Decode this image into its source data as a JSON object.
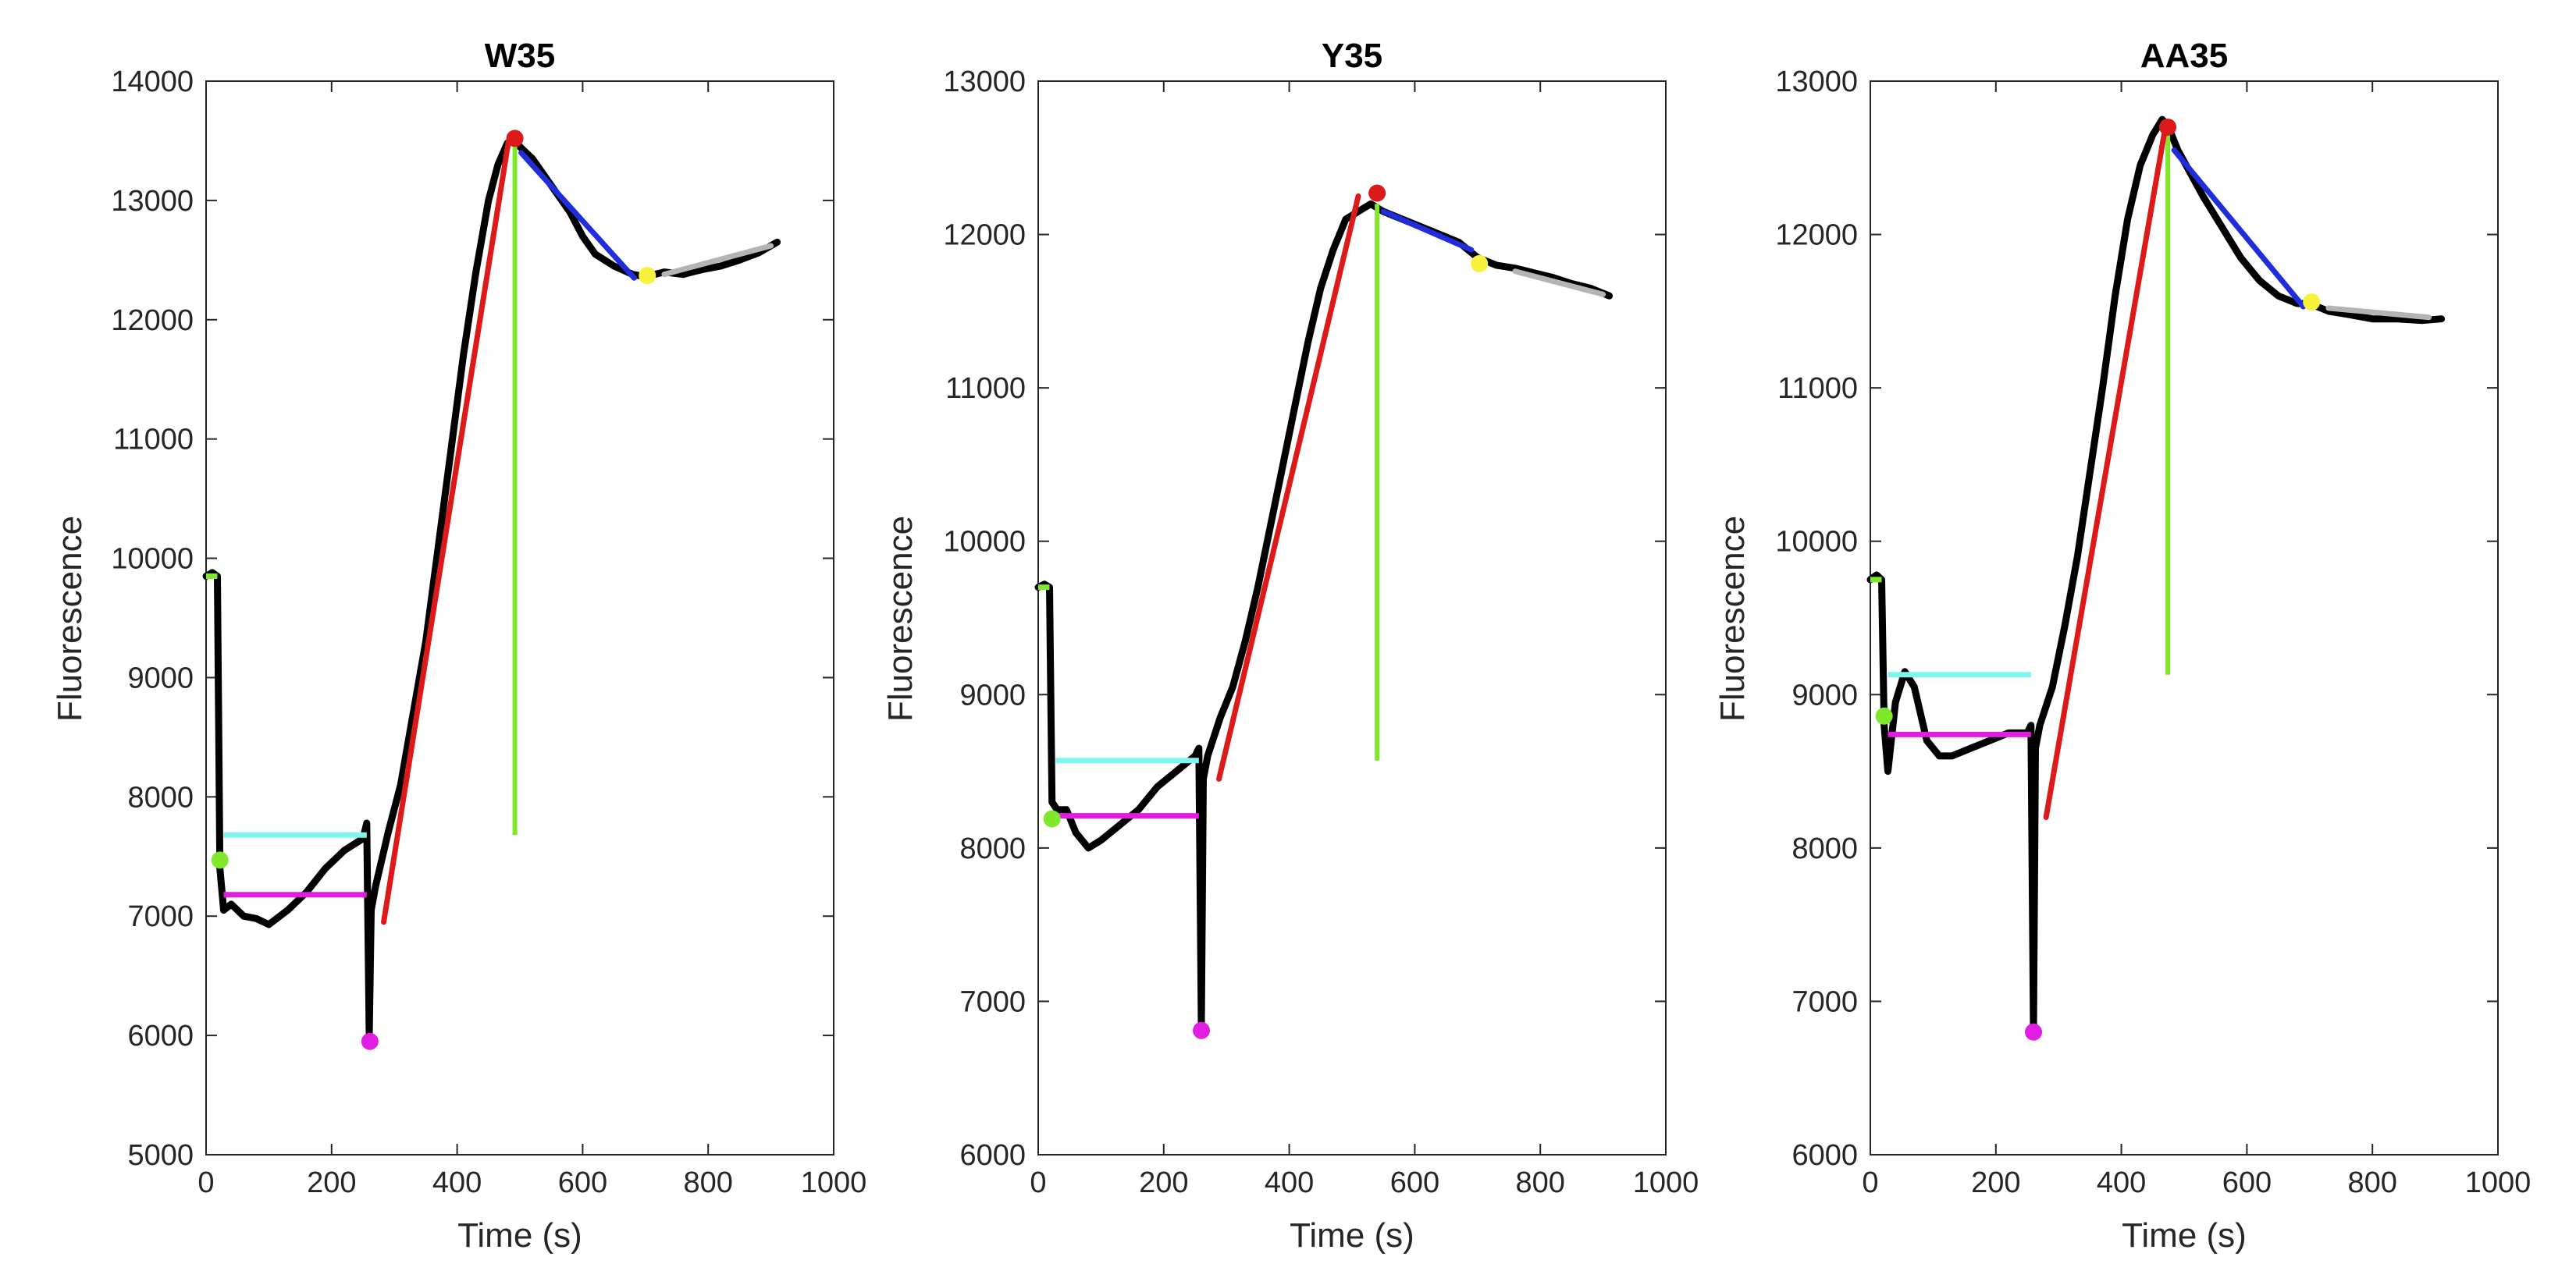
{
  "figure": {
    "colors": {
      "trace": "#000000",
      "baseline_marker": "#7fe82a",
      "cyan_line": "#7ff5f0",
      "magenta": "#e21de2",
      "red_fit": "#dd1a1a",
      "green_bar": "#7fe82a",
      "blue_fit": "#1f2ddd",
      "yellow_marker": "#f7f23c",
      "gray_fit": "#b4b4b4"
    }
  },
  "chart_data": [
    {
      "type": "line",
      "title": "W35",
      "xlabel": "Time (s)",
      "ylabel": "Fluorescence",
      "xlim": [
        0,
        1000
      ],
      "ylim": [
        5000,
        14000
      ],
      "xticks": [
        0,
        200,
        400,
        600,
        800,
        1000
      ],
      "yticks": [
        5000,
        6000,
        7000,
        8000,
        9000,
        10000,
        11000,
        12000,
        13000,
        14000
      ],
      "grid": false,
      "trace": [
        [
          0,
          9850
        ],
        [
          10,
          9880
        ],
        [
          18,
          9850
        ],
        [
          22,
          7400
        ],
        [
          28,
          7050
        ],
        [
          40,
          7100
        ],
        [
          60,
          7000
        ],
        [
          80,
          6980
        ],
        [
          100,
          6930
        ],
        [
          130,
          7050
        ],
        [
          160,
          7200
        ],
        [
          190,
          7400
        ],
        [
          220,
          7550
        ],
        [
          250,
          7650
        ],
        [
          256,
          7780
        ],
        [
          260,
          6000
        ],
        [
          263,
          7050
        ],
        [
          270,
          7250
        ],
        [
          290,
          7700
        ],
        [
          310,
          8100
        ],
        [
          330,
          8700
        ],
        [
          350,
          9300
        ],
        [
          370,
          10100
        ],
        [
          390,
          10900
        ],
        [
          410,
          11700
        ],
        [
          430,
          12400
        ],
        [
          450,
          13000
        ],
        [
          465,
          13300
        ],
        [
          480,
          13480
        ],
        [
          490,
          13520
        ],
        [
          500,
          13450
        ],
        [
          520,
          13350
        ],
        [
          540,
          13200
        ],
        [
          560,
          13050
        ],
        [
          580,
          12900
        ],
        [
          600,
          12700
        ],
        [
          620,
          12550
        ],
        [
          650,
          12450
        ],
        [
          680,
          12380
        ],
        [
          700,
          12360
        ],
        [
          730,
          12400
        ],
        [
          760,
          12380
        ],
        [
          790,
          12420
        ],
        [
          820,
          12450
        ],
        [
          850,
          12500
        ],
        [
          880,
          12560
        ],
        [
          910,
          12650
        ]
      ],
      "baseline_level": {
        "x": [
          0,
          18
        ],
        "y": 9850
      },
      "markers": [
        {
          "color": "green",
          "x": 22,
          "y": 7470
        },
        {
          "color": "magenta",
          "x": 261,
          "y": 5950
        },
        {
          "color": "red",
          "x": 492,
          "y": 13520
        },
        {
          "color": "yellow",
          "x": 703,
          "y": 12370
        }
      ],
      "cyan_line": {
        "x": [
          28,
          256
        ],
        "y": 7680
      },
      "magenta_line": {
        "x": [
          28,
          256
        ],
        "y": 7180
      },
      "red_fit": [
        [
          283,
          6950
        ],
        [
          482,
          13500
        ]
      ],
      "green_bar": {
        "x": 492,
        "y": [
          7680,
          13500
        ]
      },
      "blue_fit": [
        [
          502,
          13400
        ],
        [
          682,
          12350
        ]
      ],
      "gray_fit": [
        [
          730,
          12380
        ],
        [
          900,
          12620
        ]
      ]
    },
    {
      "type": "line",
      "title": "Y35",
      "xlabel": "Time (s)",
      "ylabel": "Fluorescence",
      "xlim": [
        0,
        1000
      ],
      "ylim": [
        6000,
        13000
      ],
      "xticks": [
        0,
        200,
        400,
        600,
        800,
        1000
      ],
      "yticks": [
        6000,
        7000,
        8000,
        9000,
        10000,
        11000,
        12000,
        13000
      ],
      "grid": false,
      "trace": [
        [
          0,
          9700
        ],
        [
          10,
          9720
        ],
        [
          18,
          9700
        ],
        [
          22,
          8300
        ],
        [
          30,
          8250
        ],
        [
          45,
          8250
        ],
        [
          60,
          8100
        ],
        [
          80,
          8000
        ],
        [
          100,
          8050
        ],
        [
          130,
          8150
        ],
        [
          160,
          8250
        ],
        [
          190,
          8400
        ],
        [
          220,
          8500
        ],
        [
          250,
          8600
        ],
        [
          256,
          8650
        ],
        [
          260,
          6850
        ],
        [
          263,
          8450
        ],
        [
          270,
          8600
        ],
        [
          290,
          8850
        ],
        [
          310,
          9050
        ],
        [
          330,
          9350
        ],
        [
          350,
          9700
        ],
        [
          370,
          10100
        ],
        [
          390,
          10500
        ],
        [
          410,
          10900
        ],
        [
          430,
          11300
        ],
        [
          450,
          11650
        ],
        [
          470,
          11900
        ],
        [
          490,
          12100
        ],
        [
          510,
          12150
        ],
        [
          530,
          12200
        ],
        [
          550,
          12150
        ],
        [
          580,
          12100
        ],
        [
          610,
          12050
        ],
        [
          640,
          12000
        ],
        [
          670,
          11950
        ],
        [
          700,
          11850
        ],
        [
          730,
          11800
        ],
        [
          760,
          11780
        ],
        [
          790,
          11750
        ],
        [
          820,
          11720
        ],
        [
          850,
          11680
        ],
        [
          880,
          11650
        ],
        [
          910,
          11600
        ]
      ],
      "baseline_level": {
        "x": [
          0,
          18
        ],
        "y": 9700
      },
      "markers": [
        {
          "color": "green",
          "x": 22,
          "y": 8190
        },
        {
          "color": "magenta",
          "x": 260,
          "y": 6810
        },
        {
          "color": "red",
          "x": 540,
          "y": 12270
        },
        {
          "color": "yellow",
          "x": 703,
          "y": 11810
        }
      ],
      "cyan_line": {
        "x": [
          28,
          256
        ],
        "y": 8570
      },
      "magenta_line": {
        "x": [
          28,
          256
        ],
        "y": 8210
      },
      "red_fit": [
        [
          288,
          8450
        ],
        [
          510,
          12250
        ]
      ],
      "green_bar": {
        "x": 540,
        "y": [
          8570,
          12200
        ]
      },
      "blue_fit": [
        [
          550,
          12150
        ],
        [
          690,
          11900
        ]
      ],
      "gray_fit": [
        [
          760,
          11760
        ],
        [
          900,
          11610
        ]
      ]
    },
    {
      "type": "line",
      "title": "AA35",
      "xlabel": "Time (s)",
      "ylabel": "Fluorescence",
      "xlim": [
        0,
        1000
      ],
      "ylim": [
        6000,
        13000
      ],
      "xticks": [
        0,
        200,
        400,
        600,
        800,
        1000
      ],
      "yticks": [
        6000,
        7000,
        8000,
        9000,
        10000,
        11000,
        12000,
        13000
      ],
      "grid": false,
      "trace": [
        [
          0,
          9750
        ],
        [
          10,
          9780
        ],
        [
          18,
          9750
        ],
        [
          22,
          8800
        ],
        [
          28,
          8500
        ],
        [
          40,
          8950
        ],
        [
          55,
          9150
        ],
        [
          70,
          9050
        ],
        [
          90,
          8700
        ],
        [
          110,
          8600
        ],
        [
          130,
          8600
        ],
        [
          160,
          8650
        ],
        [
          190,
          8700
        ],
        [
          220,
          8750
        ],
        [
          250,
          8750
        ],
        [
          256,
          8800
        ],
        [
          260,
          6800
        ],
        [
          263,
          8650
        ],
        [
          270,
          8800
        ],
        [
          290,
          9050
        ],
        [
          310,
          9450
        ],
        [
          330,
          9900
        ],
        [
          350,
          10450
        ],
        [
          370,
          11000
        ],
        [
          390,
          11600
        ],
        [
          410,
          12100
        ],
        [
          430,
          12450
        ],
        [
          450,
          12650
        ],
        [
          465,
          12750
        ],
        [
          475,
          12700
        ],
        [
          490,
          12550
        ],
        [
          510,
          12400
        ],
        [
          530,
          12250
        ],
        [
          560,
          12050
        ],
        [
          590,
          11850
        ],
        [
          620,
          11700
        ],
        [
          650,
          11600
        ],
        [
          680,
          11550
        ],
        [
          700,
          11550
        ],
        [
          730,
          11500
        ],
        [
          760,
          11480
        ],
        [
          800,
          11450
        ],
        [
          840,
          11450
        ],
        [
          880,
          11440
        ],
        [
          910,
          11450
        ]
      ],
      "baseline_level": {
        "x": [
          0,
          18
        ],
        "y": 9750
      },
      "markers": [
        {
          "color": "green",
          "x": 22,
          "y": 8860
        },
        {
          "color": "magenta",
          "x": 260,
          "y": 6800
        },
        {
          "color": "red",
          "x": 474,
          "y": 12700
        },
        {
          "color": "yellow",
          "x": 703,
          "y": 11560
        }
      ],
      "cyan_line": {
        "x": [
          28,
          256
        ],
        "y": 9130
      },
      "magenta_line": {
        "x": [
          28,
          256
        ],
        "y": 8740
      },
      "red_fit": [
        [
          280,
          8200
        ],
        [
          468,
          12650
        ]
      ],
      "green_bar": {
        "x": 474,
        "y": [
          9130,
          12650
        ]
      },
      "blue_fit": [
        [
          484,
          12550
        ],
        [
          690,
          11530
        ]
      ],
      "gray_fit": [
        [
          730,
          11520
        ],
        [
          890,
          11460
        ]
      ]
    }
  ]
}
